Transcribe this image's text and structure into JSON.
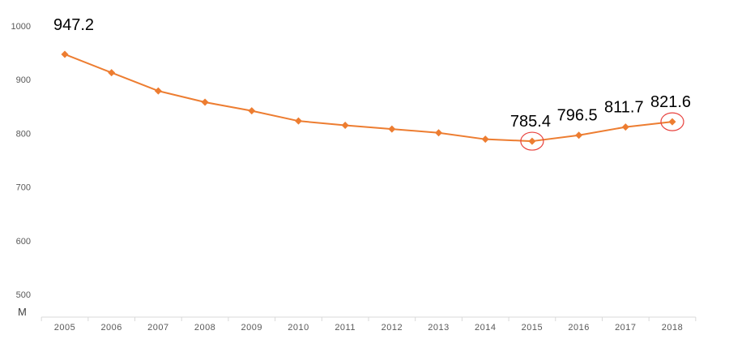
{
  "chart_data": {
    "type": "line",
    "title": "",
    "xlabel": "",
    "ylabel": "",
    "unit_label": "M",
    "categories": [
      "2005",
      "2006",
      "2007",
      "2008",
      "2009",
      "2010",
      "2011",
      "2012",
      "2013",
      "2014",
      "2015",
      "2016",
      "2017",
      "2018"
    ],
    "values": [
      947.2,
      913,
      879,
      858,
      842,
      823,
      815,
      808,
      801,
      789,
      785.4,
      796.5,
      811.7,
      821.6
    ],
    "y_ticks": [
      "500",
      "600",
      "700",
      "800",
      "900",
      "1000"
    ],
    "ylim": [
      500,
      1000
    ],
    "grid": false,
    "data_labels": [
      {
        "index": 0,
        "text": "947.2"
      },
      {
        "index": 10,
        "text": "785.4"
      },
      {
        "index": 11,
        "text": "796.5"
      },
      {
        "index": 12,
        "text": "811.7"
      },
      {
        "index": 13,
        "text": "821.6"
      }
    ],
    "highlighted_indices": [
      10,
      13
    ],
    "colors": {
      "line": "#ED7D31",
      "highlight_circle": "#E8413D",
      "axis": "#D9D9D9",
      "tick_text": "#595959",
      "label_text": "#000000"
    }
  }
}
